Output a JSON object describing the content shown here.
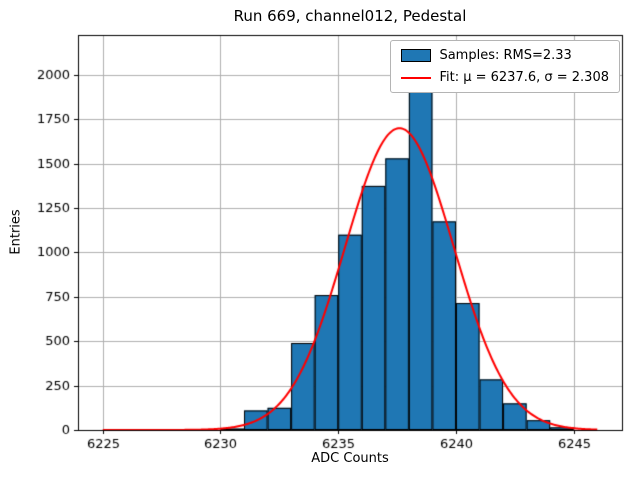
{
  "chart_data": {
    "type": "bar",
    "subtype": "histogram-with-gaussian-fit",
    "title": "Run 669, channel012, Pedestal",
    "xlabel": "ADC Counts",
    "ylabel": "Entries",
    "xlim": [
      6223.95,
      6247.05
    ],
    "ylim": [
      0,
      2225
    ],
    "xticks": [
      6225,
      6230,
      6235,
      6240,
      6245
    ],
    "yticks": [
      0,
      250,
      500,
      750,
      1000,
      1250,
      1500,
      1750,
      2000
    ],
    "grid": true,
    "bin_width": 1,
    "bin_left_edges": [
      6230,
      6231,
      6232,
      6233,
      6234,
      6235,
      6236,
      6237,
      6238,
      6239,
      6240,
      6241,
      6242,
      6243,
      6244
    ],
    "counts": [
      8,
      110,
      125,
      490,
      760,
      1100,
      1375,
      1530,
      1930,
      1175,
      715,
      285,
      150,
      55,
      15
    ],
    "fit": {
      "type": "gaussian",
      "mu": 6237.6,
      "sigma": 2.308,
      "amplitude": 1700,
      "x_range": [
        6225,
        6246
      ]
    },
    "legend": {
      "position": "upper right",
      "entries": [
        {
          "label": "Samples: RMS=2.33",
          "marker": "patch",
          "color": "#1f77b4"
        },
        {
          "label": "Fit: μ = 6237.6, σ = 2.308",
          "marker": "line",
          "color": "#ff0000"
        }
      ]
    },
    "colors": {
      "bar_fill": "#1f77b4",
      "bar_edge": "#000000",
      "fit_line": "#ff0000",
      "grid": "#b0b0b0",
      "spine": "#000000"
    }
  }
}
